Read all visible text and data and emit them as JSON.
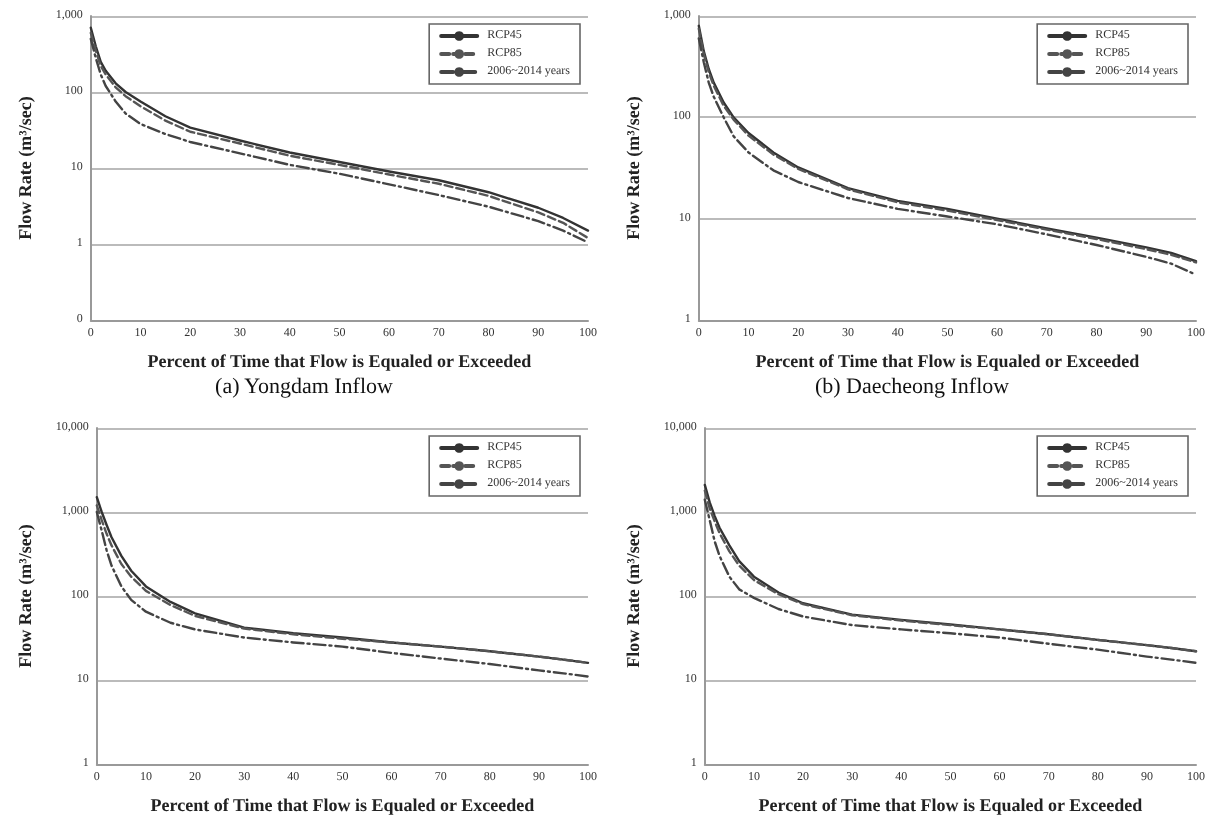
{
  "chart_data": [
    {
      "type": "line",
      "title": "(a) Yongdam Inflow",
      "xlabel": "Percent of Time that Flow is Equaled or Exceeded",
      "ylabel": "Flow Rate (m³/sec)",
      "x": [
        0,
        1,
        2,
        3,
        5,
        7,
        10,
        15,
        20,
        30,
        40,
        50,
        60,
        70,
        80,
        90,
        95,
        100
      ],
      "xlim": [
        0,
        100
      ],
      "xticks": [
        0,
        10,
        20,
        30,
        40,
        50,
        60,
        70,
        80,
        90,
        100
      ],
      "ylim": [
        0.1,
        1000
      ],
      "yticks": [
        {
          "value": 0.1,
          "label": "0"
        },
        1,
        10,
        100,
        {
          "value": 1000,
          "label": "1,000"
        }
      ],
      "log": "y",
      "grid": "y",
      "legend": "top right",
      "marker": "none",
      "series": [
        {
          "name": "RCP45",
          "color": "#333333",
          "line_style": "solid",
          "values": [
            700,
            400,
            250,
            190,
            130,
            100,
            75,
            48,
            34,
            23,
            16,
            12,
            9,
            6.9,
            4.8,
            3,
            2.2,
            1.5
          ]
        },
        {
          "name": "RCP85",
          "color": "#555555",
          "line_style": "dashed",
          "values": [
            600,
            350,
            220,
            170,
            115,
            88,
            65,
            42,
            30,
            21,
            14.5,
            11,
            8.2,
            6.2,
            4.3,
            2.6,
            1.9,
            1.2
          ]
        },
        {
          "name": "2006~2014 years",
          "color": "#444444",
          "line_style": "dashdot",
          "values": [
            500,
            280,
            170,
            120,
            75,
            52,
            38,
            28,
            22,
            15.6,
            11,
            8.4,
            6.1,
            4.4,
            3.1,
            2,
            1.5,
            1.05
          ]
        }
      ]
    },
    {
      "type": "line",
      "title": "(b) Daecheong Inflow",
      "xlabel": "Percent of Time that Flow is Equaled or Exceeded",
      "ylabel": "Flow Rate (m³/sec)",
      "x": [
        0,
        1,
        2,
        3,
        5,
        7,
        10,
        15,
        20,
        30,
        40,
        50,
        60,
        70,
        80,
        90,
        95,
        100
      ],
      "xlim": [
        0,
        100
      ],
      "xticks": [
        0,
        10,
        20,
        30,
        40,
        50,
        60,
        70,
        80,
        90,
        100
      ],
      "ylim": [
        1,
        1000
      ],
      "yticks": [
        1,
        10,
        100,
        {
          "value": 1000,
          "label": "1,000"
        }
      ],
      "log": "y",
      "grid": "y",
      "legend": "top right",
      "marker": "none",
      "series": [
        {
          "name": "RCP45",
          "color": "#333333",
          "line_style": "solid",
          "values": [
            800,
            450,
            300,
            220,
            140,
            100,
            70,
            45,
            32,
            20,
            15,
            12.5,
            10,
            8,
            6.5,
            5.2,
            4.6,
            3.8
          ]
        },
        {
          "name": "RCP85",
          "color": "#555555",
          "line_style": "dashed",
          "values": [
            750,
            420,
            280,
            205,
            130,
            95,
            66,
            43,
            31,
            19.5,
            14.5,
            12,
            9.7,
            7.8,
            6.3,
            5,
            4.4,
            3.7
          ]
        },
        {
          "name": "2006~2014 years",
          "color": "#444444",
          "line_style": "dashdot",
          "values": [
            600,
            350,
            220,
            160,
            100,
            65,
            45,
            30,
            23,
            16,
            12.5,
            10.5,
            8.8,
            7,
            5.5,
            4.2,
            3.6,
            2.8
          ]
        }
      ]
    },
    {
      "type": "line",
      "xlabel": "Percent of Time that Flow is Equaled or Exceeded",
      "ylabel": "Flow Rate (m³/sec)",
      "x": [
        0,
        1,
        2,
        3,
        5,
        7,
        10,
        15,
        20,
        30,
        40,
        50,
        60,
        70,
        80,
        90,
        95,
        100
      ],
      "xlim": [
        0,
        100
      ],
      "xticks": [
        0,
        10,
        20,
        30,
        40,
        50,
        60,
        70,
        80,
        90,
        100
      ],
      "ylim": [
        1,
        10000
      ],
      "yticks": [
        1,
        10,
        100,
        {
          "value": 1000,
          "label": "1,000"
        },
        {
          "value": 10000,
          "label": "10,000"
        }
      ],
      "log": "y",
      "grid": "y",
      "legend": "top right",
      "marker": "none",
      "series": [
        {
          "name": "RCP45",
          "color": "#333333",
          "line_style": "solid",
          "values": [
            1500,
            1000,
            700,
            500,
            300,
            200,
            130,
            85,
            62,
            42,
            36,
            32,
            28,
            25,
            22,
            19,
            17.5,
            16
          ]
        },
        {
          "name": "RCP85",
          "color": "#555555",
          "line_style": "dashed",
          "values": [
            1200,
            800,
            550,
            400,
            240,
            170,
            115,
            78,
            58,
            41,
            35,
            31,
            28,
            25,
            22,
            19,
            17.5,
            16
          ]
        },
        {
          "name": "2006~2014 years",
          "color": "#444444",
          "line_style": "dashdot",
          "values": [
            1000,
            600,
            350,
            230,
            130,
            90,
            65,
            48,
            40,
            32,
            28,
            25,
            21,
            18,
            15.5,
            13,
            12,
            11
          ]
        }
      ]
    },
    {
      "type": "line",
      "xlabel": "Percent of Time that Flow is Equaled or Exceeded",
      "ylabel": "Flow Rate (m³/sec)",
      "x": [
        0,
        1,
        2,
        3,
        5,
        7,
        10,
        15,
        20,
        30,
        40,
        50,
        60,
        70,
        80,
        90,
        95,
        100
      ],
      "xlim": [
        0,
        100
      ],
      "xticks": [
        0,
        10,
        20,
        30,
        40,
        50,
        60,
        70,
        80,
        90,
        100
      ],
      "ylim": [
        1,
        10000
      ],
      "yticks": [
        1,
        10,
        100,
        {
          "value": 1000,
          "label": "1,000"
        },
        {
          "value": 10000,
          "label": "10,000"
        }
      ],
      "log": "y",
      "grid": "y",
      "legend": "top right",
      "marker": "none",
      "series": [
        {
          "name": "RCP45",
          "color": "#333333",
          "line_style": "solid",
          "values": [
            2100,
            1300,
            900,
            650,
            400,
            260,
            170,
            110,
            82,
            60,
            52,
            46,
            40,
            35,
            30,
            26,
            24,
            22
          ]
        },
        {
          "name": "RCP85",
          "color": "#555555",
          "line_style": "dashed",
          "values": [
            1800,
            1100,
            780,
            560,
            340,
            230,
            155,
            105,
            80,
            59,
            51,
            45,
            40,
            35,
            30,
            26,
            24,
            22
          ]
        },
        {
          "name": "2006~2014 years",
          "color": "#444444",
          "line_style": "dashdot",
          "values": [
            1400,
            800,
            450,
            300,
            170,
            120,
            95,
            70,
            57,
            45,
            40,
            36,
            32,
            27,
            23,
            19,
            17.5,
            16
          ]
        }
      ]
    }
  ]
}
